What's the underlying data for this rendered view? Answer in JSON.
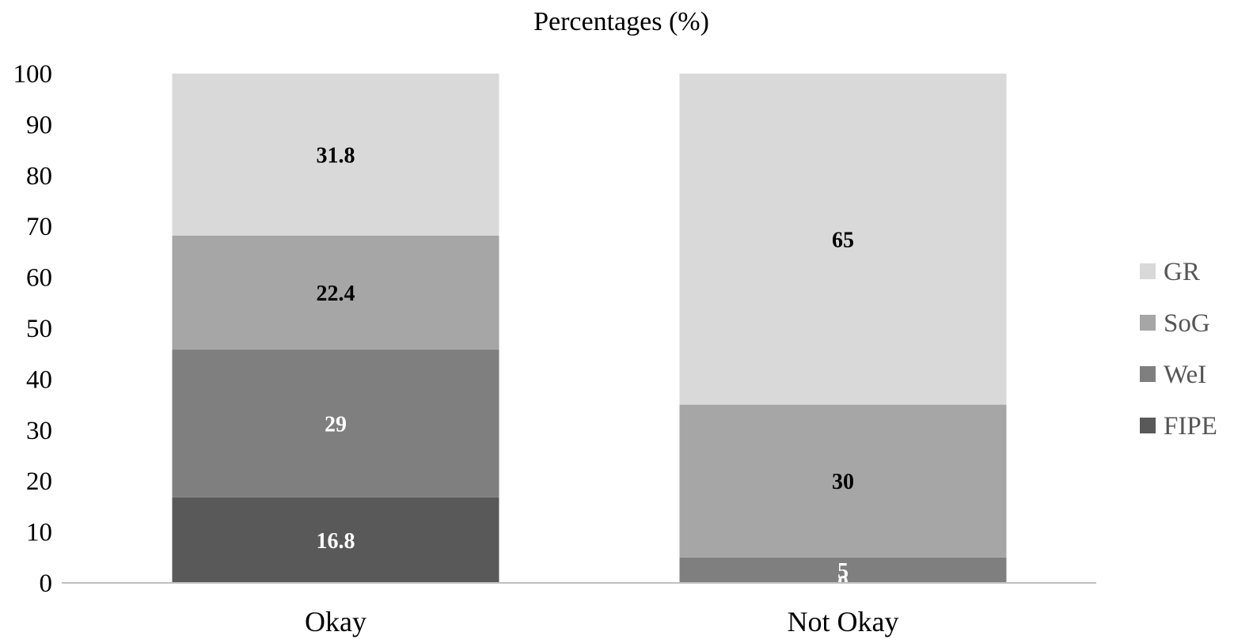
{
  "chart_data": {
    "type": "bar",
    "stacked": true,
    "title": "Percentages (%)",
    "xlabel": "",
    "ylabel": "",
    "categories": [
      "Okay",
      "Not Okay"
    ],
    "ylim": [
      0,
      100
    ],
    "yticks": [
      0,
      10,
      20,
      30,
      40,
      50,
      60,
      70,
      80,
      90,
      100
    ],
    "grid": false,
    "legend_position": "right",
    "series": [
      {
        "name": "FIPE",
        "values": [
          16.8,
          0
        ],
        "labels": [
          "16.8",
          "0"
        ],
        "color": "#595959",
        "label_color": "#ffffff"
      },
      {
        "name": "WeI",
        "values": [
          29,
          5
        ],
        "labels": [
          "29",
          "5"
        ],
        "color": "#7f7f7f",
        "label_color": "#ffffff"
      },
      {
        "name": "SoG",
        "values": [
          22.4,
          30
        ],
        "labels": [
          "22.4",
          "30"
        ],
        "color": "#a6a6a6",
        "label_color": "#000000"
      },
      {
        "name": "GR",
        "values": [
          31.8,
          65
        ],
        "labels": [
          "31.8",
          "65"
        ],
        "color": "#d9d9d9",
        "label_color": "#000000"
      }
    ],
    "legend_order": [
      "GR",
      "SoG",
      "WeI",
      "FIPE"
    ]
  }
}
